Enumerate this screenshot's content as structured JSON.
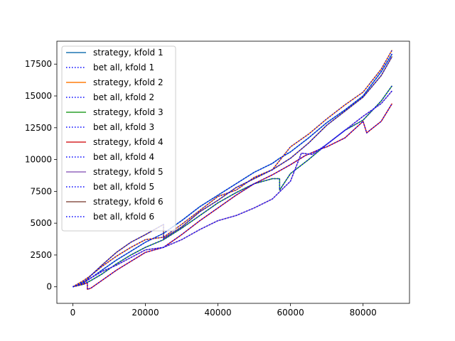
{
  "chart_data": {
    "type": "line",
    "title": "",
    "xlabel": "",
    "ylabel": "",
    "xlim": [
      -4400,
      92800
    ],
    "ylim": [
      -1300,
      19300
    ],
    "xticks": [
      0,
      20000,
      40000,
      60000,
      80000
    ],
    "xtick_labels": [
      "0",
      "20000",
      "40000",
      "60000",
      "80000"
    ],
    "yticks": [
      0,
      2500,
      5000,
      7500,
      10000,
      12500,
      15000,
      17500
    ],
    "ytick_labels": [
      "0",
      "2500",
      "5000",
      "7500",
      "10000",
      "12500",
      "15000",
      "17500"
    ],
    "grid": false,
    "legend_position": "top-left",
    "colors": {
      "strategy_1": "#1f77b4",
      "strategy_2": "#ff7f0e",
      "strategy_3": "#2ca02c",
      "strategy_4": "#d62728",
      "strategy_5": "#9467bd",
      "strategy_6": "#8c564b",
      "bet_all": "#0000ff"
    },
    "series": [
      {
        "name": "strategy, kfold 1",
        "style": "solid",
        "color_key": "strategy_1",
        "x": [
          0,
          3000,
          5000,
          8000,
          12000,
          16000,
          20000,
          25000,
          30000,
          35000,
          40000,
          45000,
          50000,
          55000,
          57000,
          60000,
          65000,
          70000,
          75000,
          80000,
          85000,
          88000
        ],
        "y": [
          0,
          400,
          700,
          1300,
          2100,
          2800,
          3500,
          4200,
          5200,
          6300,
          7200,
          8100,
          9000,
          9700,
          10100,
          10600,
          11700,
          12900,
          13900,
          15000,
          16900,
          18300
        ]
      },
      {
        "name": "bet all, kfold 1",
        "style": "dotted",
        "color_key": "bet_all",
        "x": [
          0,
          3000,
          5000,
          8000,
          12000,
          16000,
          20000,
          25000,
          30000,
          35000,
          40000,
          45000,
          50000,
          55000,
          57000,
          60000,
          65000,
          70000,
          75000,
          80000,
          85000,
          88000
        ],
        "y": [
          0,
          400,
          700,
          1300,
          2100,
          2800,
          3500,
          4200,
          5200,
          6300,
          7200,
          8100,
          9000,
          9700,
          10100,
          10600,
          11700,
          12900,
          13900,
          15000,
          16900,
          18300
        ]
      },
      {
        "name": "strategy, kfold 2",
        "style": "solid",
        "color_key": "strategy_2",
        "x": [
          0,
          3000,
          5000,
          8000,
          12000,
          16000,
          20000,
          25000,
          30000,
          35000,
          40000,
          45000,
          50000,
          55000,
          60000,
          65000,
          70000,
          75000,
          80000,
          85000,
          88000
        ],
        "y": [
          0,
          500,
          900,
          1600,
          2400,
          3100,
          3700,
          3900,
          4900,
          6000,
          7100,
          7600,
          8600,
          9200,
          11000,
          12000,
          13200,
          14300,
          15300,
          17100,
          18600
        ]
      },
      {
        "name": "bet all, kfold 2",
        "style": "dotted",
        "color_key": "bet_all",
        "x": [
          0,
          3000,
          5000,
          8000,
          12000,
          16000,
          20000,
          25000,
          30000,
          35000,
          40000,
          45000,
          50000,
          55000,
          60000,
          65000,
          70000,
          75000,
          80000,
          85000,
          88000
        ],
        "y": [
          0,
          500,
          900,
          1600,
          2400,
          3100,
          3700,
          3900,
          4900,
          6000,
          7100,
          7600,
          8600,
          9200,
          11000,
          12000,
          13200,
          14300,
          15300,
          17100,
          18600
        ]
      },
      {
        "name": "strategy, kfold 3",
        "style": "solid",
        "color_key": "strategy_3",
        "x": [
          0,
          3000,
          5000,
          8000,
          12000,
          16000,
          20000,
          25000,
          30000,
          35000,
          40000,
          45000,
          50000,
          55000,
          57000,
          57001,
          60000,
          65000,
          70000,
          75000,
          80000,
          85000,
          88000
        ],
        "y": [
          0,
          200,
          500,
          1000,
          1800,
          2500,
          3100,
          3700,
          4600,
          5600,
          6600,
          7400,
          8100,
          8500,
          8500,
          7600,
          8900,
          10000,
          11200,
          12300,
          13100,
          14600,
          15800
        ]
      },
      {
        "name": "bet all, kfold 3",
        "style": "dotted",
        "color_key": "bet_all",
        "x": [
          0,
          3000,
          5000,
          8000,
          12000,
          16000,
          20000,
          25000,
          30000,
          35000,
          40000,
          45000,
          50000,
          55000,
          57000,
          57001,
          60000,
          65000,
          70000,
          75000,
          80000,
          85000,
          88000
        ],
        "y": [
          0,
          200,
          500,
          1000,
          1800,
          2500,
          3100,
          3700,
          4600,
          5600,
          6600,
          7400,
          8100,
          8500,
          8500,
          7600,
          8900,
          10000,
          11200,
          12300,
          13100,
          14600,
          15800
        ]
      },
      {
        "name": "strategy, kfold 4",
        "style": "solid",
        "color_key": "strategy_4",
        "x": [
          0,
          2500,
          4000,
          4001,
          5000,
          8000,
          12000,
          16000,
          20000,
          25000,
          30000,
          35000,
          40000,
          45000,
          50000,
          55000,
          60000,
          64000,
          68000,
          70000,
          75000,
          80000,
          81000,
          85000,
          88000
        ],
        "y": [
          0,
          200,
          300,
          -200,
          -100,
          500,
          1300,
          2000,
          2700,
          3100,
          4100,
          5200,
          6200,
          7200,
          8100,
          8800,
          9600,
          10300,
          10800,
          11000,
          11700,
          13000,
          12100,
          13000,
          14400
        ]
      },
      {
        "name": "bet all, kfold 4",
        "style": "dotted",
        "color_key": "bet_all",
        "x": [
          0,
          2500,
          4000,
          4001,
          5000,
          8000,
          12000,
          16000,
          20000,
          25000,
          30000,
          35000,
          40000,
          45000,
          50000,
          55000,
          60000,
          64000,
          68000,
          70000,
          75000,
          80000,
          81000,
          85000,
          88000
        ],
        "y": [
          0,
          200,
          300,
          -200,
          -100,
          500,
          1300,
          2000,
          2700,
          3100,
          4100,
          5200,
          6200,
          7200,
          8100,
          8800,
          9600,
          10300,
          10800,
          11000,
          11700,
          13000,
          12100,
          13000,
          14400
        ]
      },
      {
        "name": "strategy, kfold 5",
        "style": "solid",
        "color_key": "strategy_5",
        "x": [
          0,
          3000,
          5000,
          8000,
          12000,
          16000,
          20000,
          25000,
          30000,
          35000,
          40000,
          45000,
          50000,
          55000,
          60000,
          63000,
          66000,
          70000,
          75000,
          80000,
          85000,
          88000
        ],
        "y": [
          0,
          300,
          700,
          1200,
          1700,
          2300,
          2900,
          3100,
          3700,
          4500,
          5200,
          5600,
          6200,
          6900,
          8300,
          10500,
          10400,
          11200,
          12300,
          13400,
          14400,
          15400
        ]
      },
      {
        "name": "bet all, kfold 5",
        "style": "dotted",
        "color_key": "bet_all",
        "x": [
          0,
          3000,
          5000,
          8000,
          12000,
          16000,
          20000,
          25000,
          30000,
          35000,
          40000,
          45000,
          50000,
          55000,
          60000,
          63000,
          66000,
          70000,
          75000,
          80000,
          85000,
          88000
        ],
        "y": [
          0,
          300,
          700,
          1200,
          1700,
          2300,
          2900,
          3100,
          3700,
          4500,
          5200,
          5600,
          6200,
          6900,
          8300,
          10500,
          10400,
          11200,
          12300,
          13400,
          14400,
          15400
        ]
      },
      {
        "name": "strategy, kfold 6",
        "style": "solid",
        "color_key": "strategy_6",
        "x": [
          0,
          3000,
          5000,
          8000,
          12000,
          16000,
          20000,
          25000,
          25001,
          30000,
          35000,
          40000,
          45000,
          50000,
          55000,
          60000,
          65000,
          70000,
          75000,
          80000,
          85000,
          88000
        ],
        "y": [
          0,
          300,
          900,
          1700,
          2700,
          3500,
          4100,
          4900,
          3800,
          4700,
          5900,
          6800,
          7800,
          8500,
          9200,
          10100,
          11300,
          12700,
          13800,
          14900,
          16600,
          18100
        ]
      },
      {
        "name": "bet all, kfold 6",
        "style": "dotted",
        "color_key": "bet_all",
        "x": [
          0,
          3000,
          5000,
          8000,
          12000,
          16000,
          20000,
          25000,
          25001,
          30000,
          35000,
          40000,
          45000,
          50000,
          55000,
          60000,
          65000,
          70000,
          75000,
          80000,
          85000,
          88000
        ],
        "y": [
          0,
          300,
          900,
          1700,
          2700,
          3500,
          4100,
          4900,
          3800,
          4700,
          5900,
          6800,
          7800,
          8500,
          9200,
          10100,
          11300,
          12700,
          13800,
          14900,
          16600,
          18100
        ]
      }
    ]
  }
}
